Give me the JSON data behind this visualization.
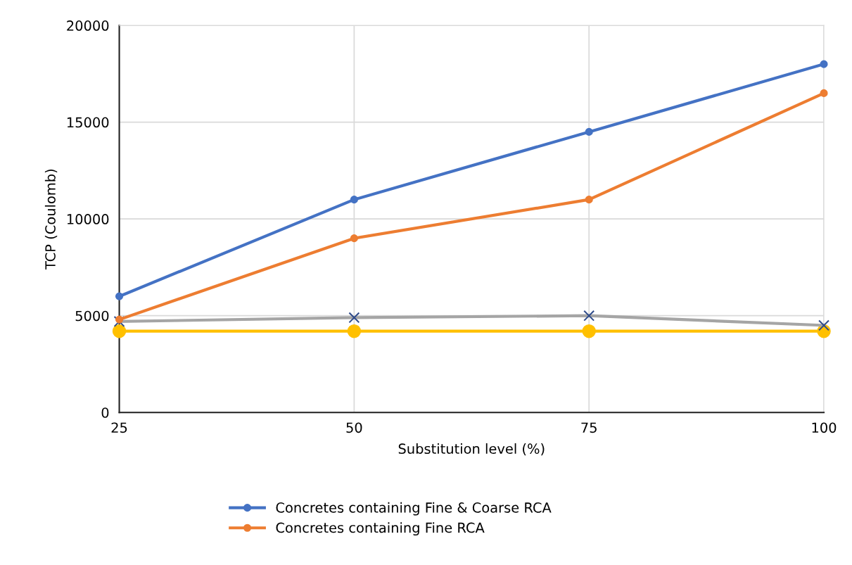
{
  "chart_data": {
    "type": "line",
    "xlabel": "Substitution level (%)",
    "ylabel": "TCP (Coulomb)",
    "x": [
      25,
      50,
      75,
      100
    ],
    "series": [
      {
        "name": "Concretes containing Fine & Coarse RCA",
        "color": "#4472c4",
        "marker": "circle",
        "values": [
          6000,
          11000,
          14500,
          18000
        ]
      },
      {
        "name": "Concretes containing Fine RCA",
        "color": "#ed7d31",
        "marker": "circle",
        "values": [
          4800,
          9000,
          11000,
          16500
        ]
      },
      {
        "color": "#a5a5a5",
        "marker": "cross",
        "values": [
          4700,
          4900,
          5000,
          4500
        ]
      },
      {
        "color": "#ffc000",
        "marker": "circle",
        "values": [
          4200,
          4200,
          4200,
          4200
        ]
      }
    ],
    "xlim": [
      25,
      100
    ],
    "xticks": [
      25,
      50,
      75,
      100
    ],
    "ylim": [
      0,
      20000
    ],
    "yticks": [
      0,
      5000,
      10000,
      15000,
      20000
    ],
    "grid": true,
    "legend": "bottom"
  }
}
